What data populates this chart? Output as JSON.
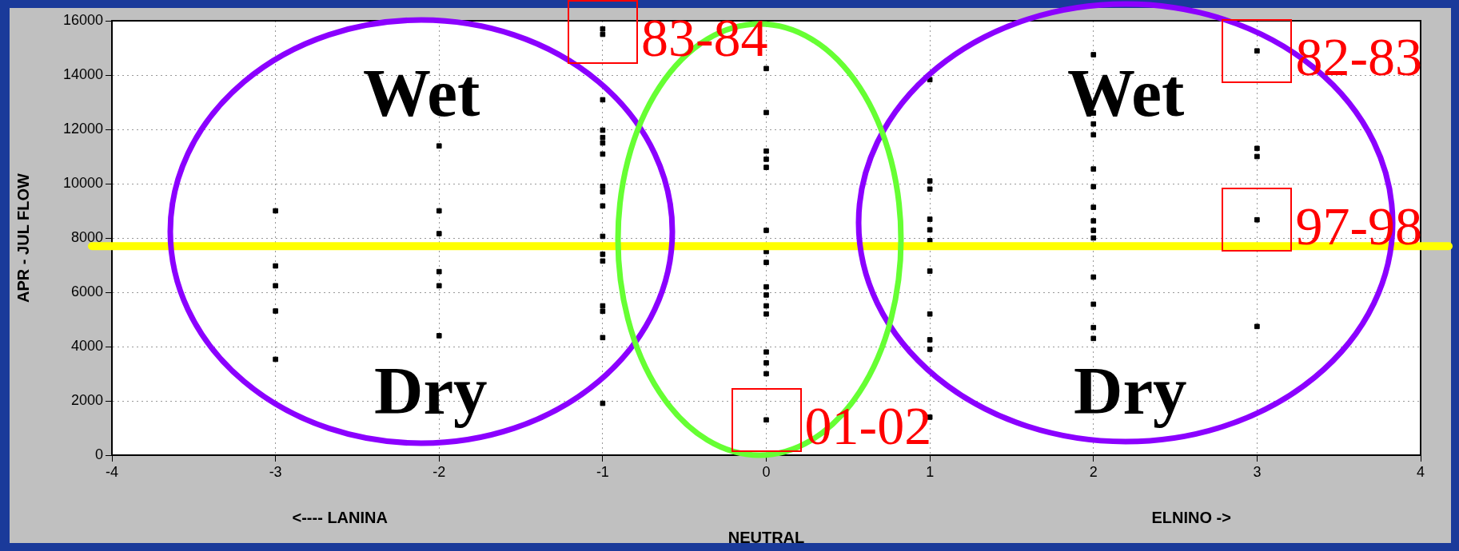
{
  "chart_data": {
    "type": "scatter",
    "ylabel": "APR - JUL FLOW",
    "xlabel": "NEUTRAL",
    "xlim": [
      -4,
      4
    ],
    "xticks": [
      -4,
      -3,
      -2,
      -1,
      0,
      1,
      2,
      3,
      4
    ],
    "ylim": [
      0,
      16000
    ],
    "yticks": [
      0,
      2000,
      4000,
      6000,
      8000,
      10000,
      12000,
      14000,
      16000
    ],
    "grid": true,
    "legend": false,
    "marker": "square",
    "series": [
      {
        "color": "#000000",
        "x": [
          -3,
          -3,
          -3,
          -3,
          -3,
          -2,
          -2,
          -2,
          -2,
          -2,
          -2,
          -1,
          -1,
          -1,
          -1,
          -1,
          -1,
          -1,
          -1,
          -1,
          -1,
          -1,
          -1,
          -1,
          -1,
          -1,
          -1,
          -1,
          0,
          0,
          0,
          0,
          0,
          0,
          0,
          0,
          0,
          0,
          0,
          0,
          0,
          0,
          0,
          0,
          1,
          1,
          1,
          1,
          1,
          1,
          1,
          1,
          1,
          1,
          1,
          2,
          2,
          2,
          2,
          2,
          2,
          2,
          2,
          2,
          2,
          2,
          2,
          2,
          2,
          3,
          3,
          3,
          3,
          3
        ],
        "values": [
          9000,
          6970,
          6240,
          5310,
          3530,
          11390,
          9000,
          8160,
          6760,
          6240,
          4400,
          15700,
          15500,
          13090,
          11970,
          11700,
          11500,
          11090,
          9900,
          9700,
          9180,
          8060,
          7400,
          7150,
          5500,
          5300,
          4330,
          1910,
          14240,
          12620,
          11200,
          10900,
          10600,
          8280,
          7500,
          7100,
          6200,
          5900,
          5500,
          5200,
          3800,
          3400,
          3000,
          1300,
          13830,
          10100,
          9800,
          8690,
          8300,
          7900,
          6780,
          5200,
          4250,
          3900,
          1400,
          14750,
          12600,
          12200,
          11800,
          10540,
          9890,
          9130,
          8630,
          8280,
          8000,
          6560,
          5560,
          4700,
          4300,
          14890,
          11300,
          11000,
          8670,
          4740
        ]
      }
    ],
    "ref_lines": [
      {
        "axis": "y",
        "value": 7700,
        "color": "#ffff00"
      }
    ],
    "annotations": [
      "Wet",
      "Dry",
      "Wet",
      "Dry",
      "<----  LANINA",
      "ELNINO  ->",
      {
        "text": "83-84",
        "x": -1,
        "y": 15600
      },
      {
        "text": "82-83",
        "x": 3,
        "y": 14890
      },
      {
        "text": "97-98",
        "x": 3,
        "y": 8670
      },
      {
        "text": "01-02",
        "x": 0,
        "y": 1300
      }
    ]
  }
}
